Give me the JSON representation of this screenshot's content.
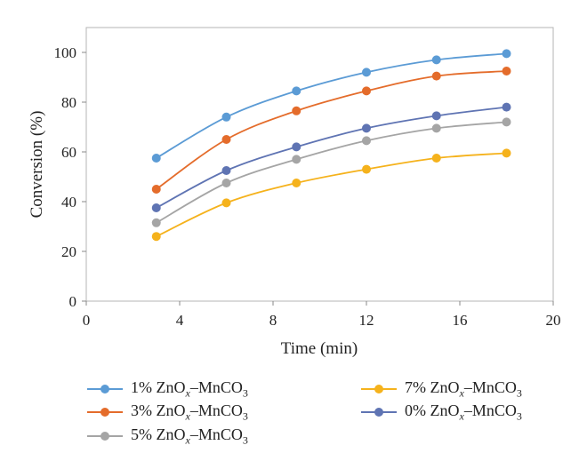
{
  "chart_data": {
    "type": "line",
    "title": "",
    "xlabel": "Time (min)",
    "ylabel": "Conversion (%)",
    "xlim": [
      0,
      20
    ],
    "ylim": [
      0,
      110
    ],
    "xticks": [
      0,
      4,
      8,
      12,
      16,
      20
    ],
    "yticks": [
      0,
      20,
      40,
      60,
      80,
      100
    ],
    "grid": false,
    "legend_position": "bottom",
    "x": [
      3,
      6,
      9,
      12,
      15,
      18
    ],
    "series": [
      {
        "name": "1% ZnOx–MnCO3",
        "prefix": "1% ZnO",
        "sub1": "x",
        "mid": "–MnCO",
        "sub2": "3",
        "color": "#5b9bd5",
        "values": [
          57.5,
          74,
          84.5,
          92,
          97,
          99.5
        ]
      },
      {
        "name": "3% ZnOx–MnCO3",
        "prefix": "3% ZnO",
        "sub1": "x",
        "mid": "–MnCO",
        "sub2": "3",
        "color": "#e46c2b",
        "values": [
          45,
          65,
          76.5,
          84.5,
          90.5,
          92.5
        ]
      },
      {
        "name": "5% ZnOx–MnCO3",
        "prefix": "5% ZnO",
        "sub1": "x",
        "mid": "–MnCO",
        "sub2": "3",
        "color": "#a5a5a5",
        "values": [
          31.5,
          47.5,
          57,
          64.5,
          69.5,
          72
        ]
      },
      {
        "name": "7% ZnOx–MnCO3",
        "prefix": "7% ZnO",
        "sub1": "x",
        "mid": "–MnCO",
        "sub2": "3",
        "color": "#f5b21c",
        "values": [
          26,
          39.5,
          47.5,
          53,
          57.5,
          59.5
        ]
      },
      {
        "name": "0% ZnOx–MnCO3",
        "prefix": "0% ZnO",
        "sub1": "x",
        "mid": "–MnCO",
        "sub2": "3",
        "color": "#5f74b3",
        "values": [
          37.5,
          52.5,
          62,
          69.5,
          74.5,
          78
        ]
      }
    ]
  }
}
